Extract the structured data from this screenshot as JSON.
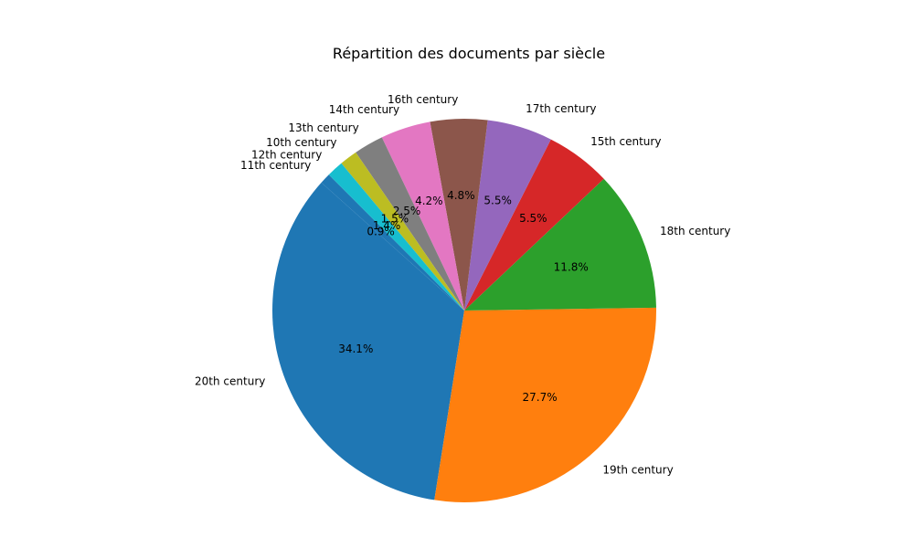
{
  "chart_data": {
    "type": "pie",
    "title": "Répartition des documents par siècle",
    "start_angle_deg": 134.9,
    "direction": "counterclockwise",
    "slices": [
      {
        "label": "11th century",
        "value": 0.9,
        "pct_label": "0.9%",
        "color": "#1f77b4"
      },
      {
        "label": "20th century",
        "value": 34.1,
        "pct_label": "34.1%",
        "color": "#1f77b4"
      },
      {
        "label": "19th century",
        "value": 27.7,
        "pct_label": "27.7%",
        "color": "#ff7f0e"
      },
      {
        "label": "18th century",
        "value": 11.8,
        "pct_label": "11.8%",
        "color": "#2ca02c"
      },
      {
        "label": "15th century",
        "value": 5.5,
        "pct_label": "5.5%",
        "color": "#d62728"
      },
      {
        "label": "17th century",
        "value": 5.5,
        "pct_label": "5.5%",
        "color": "#9467bd"
      },
      {
        "label": "16th century",
        "value": 4.8,
        "pct_label": "4.8%",
        "color": "#8c564b"
      },
      {
        "label": "14th century",
        "value": 4.2,
        "pct_label": "4.2%",
        "color": "#e377c2"
      },
      {
        "label": "13th century",
        "value": 2.5,
        "pct_label": "2.5%",
        "color": "#7f7f7f"
      },
      {
        "label": "10th century",
        "value": 1.5,
        "pct_label": "1.5%",
        "color": "#bcbd22"
      },
      {
        "label": "12th century",
        "value": 1.4,
        "pct_label": "1.4%",
        "color": "#17becf"
      }
    ]
  }
}
